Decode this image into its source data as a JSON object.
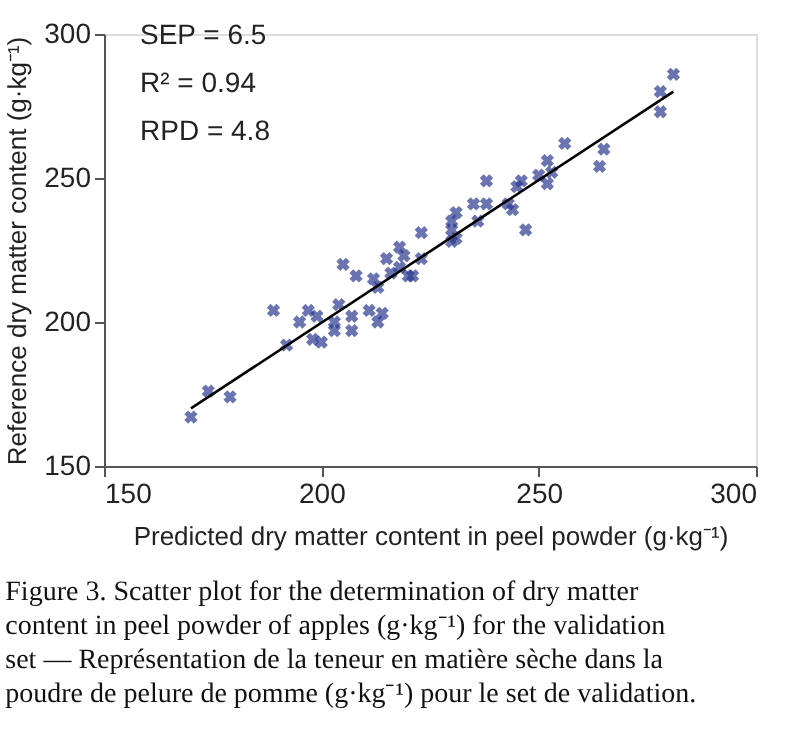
{
  "chart_data": {
    "type": "scatter",
    "xlabel": "Predicted dry matter content in peel powder (g·kg⁻¹)",
    "ylabel": "Reference dry matter content (g·kg⁻¹)",
    "xlim": [
      150,
      300
    ],
    "xticks": [
      150,
      200,
      250,
      300
    ],
    "ylim": [
      150,
      300
    ],
    "yticks": [
      150,
      200,
      250,
      300
    ],
    "grid": false,
    "marker": "cross",
    "series": [
      {
        "color": "#2b3990",
        "x": [
          170,
          174,
          179,
          192,
          189,
          195,
          197,
          199,
          198,
          200,
          203,
          203,
          204,
          205,
          208,
          207,
          207,
          211,
          213,
          214,
          212,
          213,
          215,
          216,
          218,
          219,
          218,
          220,
          221,
          223,
          223,
          230,
          231,
          230,
          247,
          256,
          252,
          253,
          250,
          252,
          238,
          246,
          245,
          235,
          238,
          243,
          244,
          231,
          236,
          230,
          265,
          264,
          278,
          278,
          281
        ],
        "values": [
          167,
          176,
          174,
          192,
          204,
          200,
          204,
          202,
          194,
          193,
          197,
          200,
          206,
          220,
          216,
          202,
          197,
          204,
          200,
          203,
          215,
          212,
          222,
          217,
          226,
          223,
          219,
          216,
          216,
          222,
          231,
          232,
          229,
          228,
          232,
          262,
          256,
          252,
          251,
          248,
          249,
          249,
          247,
          241,
          241,
          241,
          239,
          238,
          235,
          235,
          260,
          254,
          280,
          273,
          286
        ]
      },
      {
        "type": "line",
        "marker": "none",
        "color": "#000000",
        "x": [
          170,
          281
        ],
        "values": [
          170,
          280
        ]
      }
    ],
    "annotations": [
      "SEP = 6.5",
      "R² = 0.94",
      "RPD = 4.8",
      "Figure 3. Scatter plot for the determination of dry matter content in peel powder of apples (g·kg⁻¹) for the validation set — Représentation de la teneur en matière sèche dans la poudre de pelure de pomme (g·kg⁻¹) pour le set de validation."
    ]
  }
}
